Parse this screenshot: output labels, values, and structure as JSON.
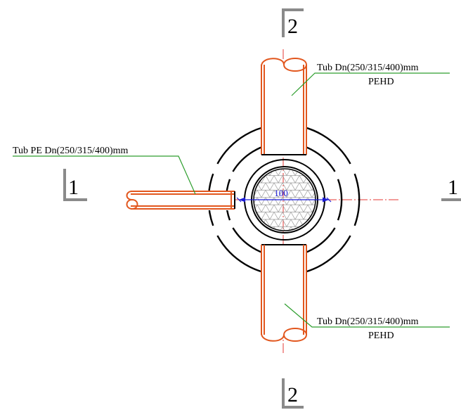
{
  "labels": {
    "pipe_top_line1": "Tub  Dn(250/315/400)mm",
    "pipe_top_line2": "PEHD",
    "pipe_left": "Tub PE Dn(250/315/400)mm",
    "pipe_bottom_line1": "Tub  Dn(250/315/400)mm",
    "pipe_bottom_line2": "PEHD"
  },
  "section_marks": {
    "top": "2",
    "bottom": "2",
    "left": "1",
    "right": "1"
  },
  "dimension": {
    "value": "100"
  },
  "colors": {
    "pipe": "#e2571e",
    "leader": "#2e9e2e",
    "axis": "#e53935",
    "dimension": "#1a1ad6",
    "section_mark": "#8a8a8a",
    "outline": "#000000",
    "hatch": "#9a9a9a"
  }
}
